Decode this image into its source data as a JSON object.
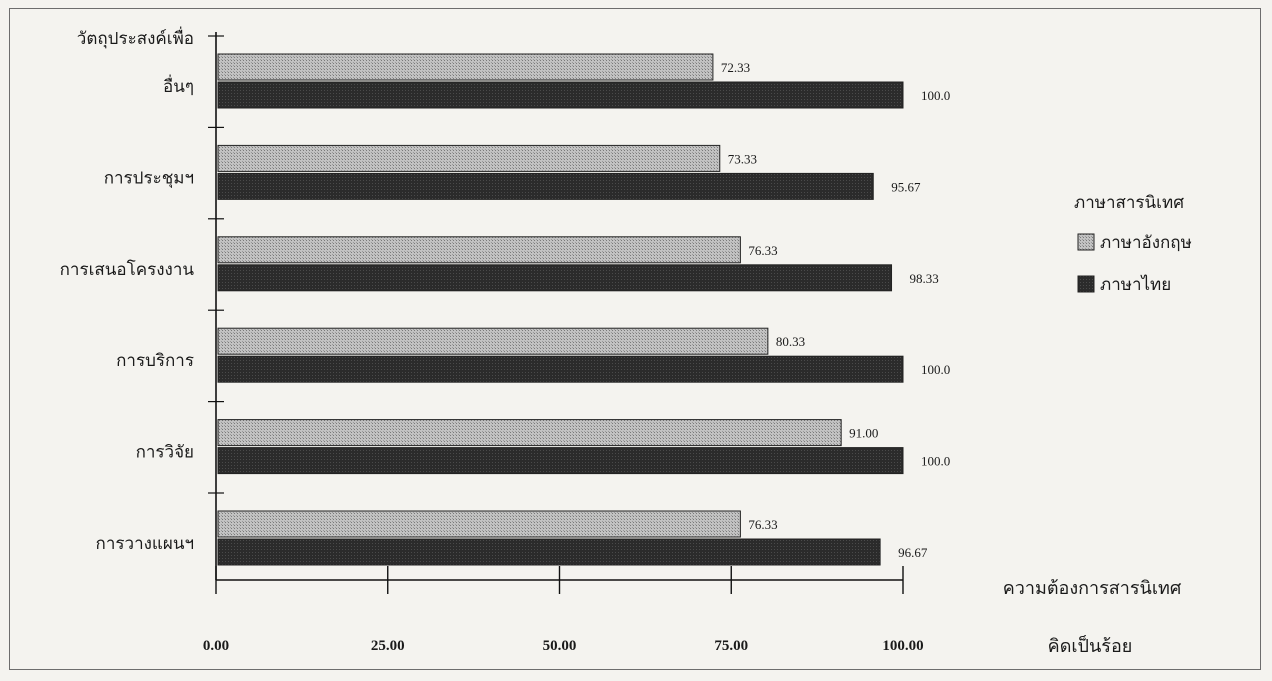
{
  "chart_data": {
    "type": "bar",
    "orientation": "horizontal",
    "title": "",
    "ylabel": "วัตถุประสงค์เพื่อ",
    "xlabel": [
      "ความต้องการสารนิเทศ",
      "คิดเป็นร้อย"
    ],
    "categories": [
      "อื่นๆ",
      "การประชุมฯ",
      "การเสนอโครงงาน",
      "การบริการ",
      "การวิจัย",
      "การวางแผนฯ"
    ],
    "series": [
      {
        "name": "ภาษาอังกฤษ",
        "values": [
          72.33,
          73.33,
          76.33,
          80.33,
          91.0,
          76.33
        ],
        "labels": [
          "72.33",
          "73.33",
          "76.33",
          "80.33",
          "91.00",
          "76.33"
        ],
        "color": "#b4b4b4"
      },
      {
        "name": "ภาษาไทย",
        "values": [
          100.0,
          95.67,
          98.33,
          100.0,
          100.0,
          96.67
        ],
        "labels": [
          "100.0",
          "95.67",
          "98.33",
          "100.0",
          "100.0",
          "96.67"
        ],
        "color": "#2a2a2a"
      }
    ],
    "xlim": [
      0,
      100
    ],
    "xticks": [
      0,
      25,
      50,
      75,
      100
    ],
    "xtick_labels": [
      "0.00",
      "25.00",
      "50.00",
      "75.00",
      "100.00"
    ],
    "legend": {
      "title": "ภาษาสารนิเทศ",
      "position": "right"
    },
    "grid": false
  }
}
